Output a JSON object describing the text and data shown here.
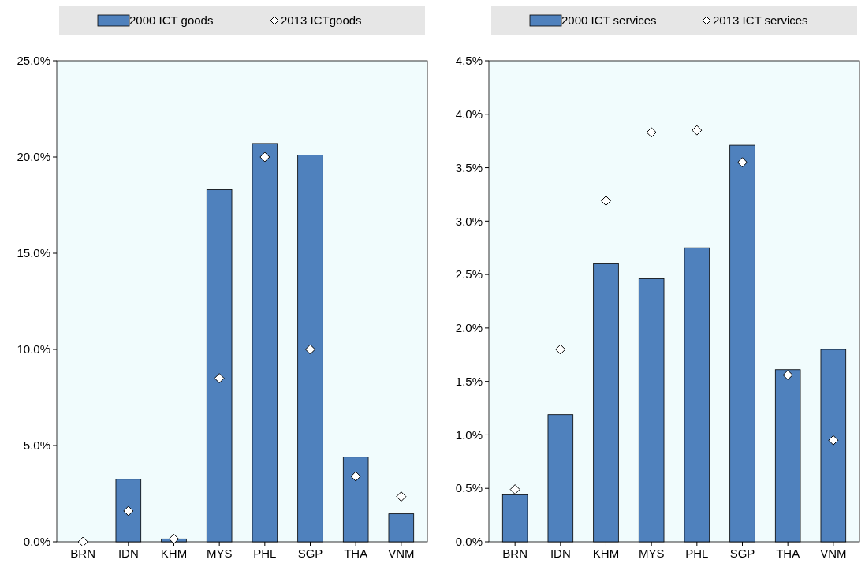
{
  "chart_data": [
    {
      "type": "bar",
      "categories": [
        "BRN",
        "IDN",
        "KHM",
        "MYS",
        "PHL",
        "SGP",
        "THA",
        "VNM"
      ],
      "series": [
        {
          "name": "2000 ICT goods",
          "color": "#4f81bd",
          "values": [
            0,
            3.25,
            0.15,
            18.3,
            20.7,
            20.1,
            4.4,
            1.45
          ]
        },
        {
          "name": "2013 ICTgoods",
          "type": "scatter",
          "marker": "diamond",
          "color": "#ffffff",
          "values": [
            0,
            1.6,
            0.15,
            8.5,
            20.0,
            10.0,
            3.4,
            2.35
          ]
        }
      ],
      "ylim": [
        0,
        25
      ],
      "yticks": [
        {
          "value": 0,
          "label": "0.0%"
        },
        {
          "value": 5,
          "label": "5.0%"
        },
        {
          "value": 10,
          "label": "10.0%"
        },
        {
          "value": 15,
          "label": "15.0%"
        },
        {
          "value": 20,
          "label": "20.0%"
        },
        {
          "value": 25,
          "label": "25.0%"
        }
      ],
      "legend": "top",
      "grid": false
    },
    {
      "type": "bar",
      "categories": [
        "BRN",
        "IDN",
        "KHM",
        "MYS",
        "PHL",
        "SGP",
        "THA",
        "VNM"
      ],
      "series": [
        {
          "name": "2000 ICT services",
          "color": "#4f81bd",
          "values": [
            0.44,
            1.19,
            2.6,
            2.46,
            2.75,
            3.71,
            1.61,
            1.8
          ]
        },
        {
          "name": "2013 ICT services",
          "type": "scatter",
          "marker": "diamond",
          "color": "#ffffff",
          "values": [
            0.49,
            1.8,
            3.19,
            3.83,
            3.85,
            3.55,
            1.56,
            0.95
          ]
        }
      ],
      "ylim": [
        0,
        4.5
      ],
      "yticks": [
        {
          "value": 0,
          "label": "0.0%"
        },
        {
          "value": 0.5,
          "label": "0.5%"
        },
        {
          "value": 1,
          "label": "1.0%"
        },
        {
          "value": 1.5,
          "label": "1.5%"
        },
        {
          "value": 2,
          "label": "2.0%"
        },
        {
          "value": 2.5,
          "label": "2.5%"
        },
        {
          "value": 3,
          "label": "3.0%"
        },
        {
          "value": 3.5,
          "label": "3.5%"
        },
        {
          "value": 4,
          "label": "4.0%"
        },
        {
          "value": 4.5,
          "label": "4.5%"
        }
      ],
      "legend": "top",
      "grid": false
    }
  ]
}
